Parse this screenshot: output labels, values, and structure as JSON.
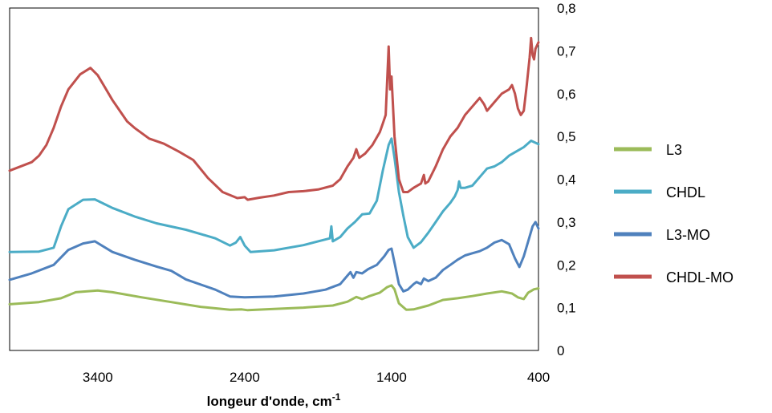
{
  "chart_data": {
    "type": "line",
    "title": "",
    "xlabel": "longeur d'onde, cm",
    "xlabel_superscript": "-1",
    "ylabel": "",
    "x_reversed": true,
    "xlim": [
      4000,
      400
    ],
    "ylim": [
      0,
      0.8
    ],
    "x_ticks": [
      3400,
      2400,
      1400,
      400
    ],
    "x_tick_labels": [
      "3400",
      "2400",
      "1400",
      "400"
    ],
    "y_ticks": [
      0,
      0.1,
      0.2,
      0.3,
      0.4,
      0.5,
      0.6,
      0.7,
      0.8
    ],
    "y_tick_labels": [
      "0",
      "0,1",
      "0,2",
      "0,3",
      "0,4",
      "0,5",
      "0,6",
      "0,7",
      "0,8"
    ],
    "y_axis_side": "right",
    "grid": false,
    "legend_position": "right",
    "series": [
      {
        "name": "L3",
        "color": "#9BBB59",
        "points": [
          [
            4000,
            0.108
          ],
          [
            3800,
            0.113
          ],
          [
            3650,
            0.122
          ],
          [
            3550,
            0.136
          ],
          [
            3400,
            0.14
          ],
          [
            3300,
            0.136
          ],
          [
            3100,
            0.124
          ],
          [
            2900,
            0.113
          ],
          [
            2700,
            0.102
          ],
          [
            2500,
            0.095
          ],
          [
            2420,
            0.096
          ],
          [
            2380,
            0.094
          ],
          [
            2200,
            0.097
          ],
          [
            2000,
            0.1
          ],
          [
            1800,
            0.105
          ],
          [
            1700,
            0.114
          ],
          [
            1640,
            0.125
          ],
          [
            1600,
            0.12
          ],
          [
            1550,
            0.127
          ],
          [
            1480,
            0.135
          ],
          [
            1430,
            0.148
          ],
          [
            1400,
            0.152
          ],
          [
            1380,
            0.143
          ],
          [
            1350,
            0.11
          ],
          [
            1300,
            0.095
          ],
          [
            1250,
            0.096
          ],
          [
            1150,
            0.105
          ],
          [
            1050,
            0.118
          ],
          [
            950,
            0.122
          ],
          [
            850,
            0.127
          ],
          [
            750,
            0.133
          ],
          [
            650,
            0.138
          ],
          [
            580,
            0.133
          ],
          [
            540,
            0.124
          ],
          [
            500,
            0.12
          ],
          [
            470,
            0.135
          ],
          [
            430,
            0.143
          ],
          [
            400,
            0.145
          ]
        ]
      },
      {
        "name": "CHDL",
        "color": "#4BACC6",
        "points": [
          [
            4000,
            0.23
          ],
          [
            3800,
            0.231
          ],
          [
            3700,
            0.24
          ],
          [
            3650,
            0.29
          ],
          [
            3600,
            0.33
          ],
          [
            3500,
            0.352
          ],
          [
            3420,
            0.353
          ],
          [
            3300,
            0.333
          ],
          [
            3150,
            0.313
          ],
          [
            3000,
            0.297
          ],
          [
            2800,
            0.282
          ],
          [
            2700,
            0.272
          ],
          [
            2600,
            0.262
          ],
          [
            2500,
            0.245
          ],
          [
            2460,
            0.252
          ],
          [
            2430,
            0.265
          ],
          [
            2400,
            0.245
          ],
          [
            2360,
            0.23
          ],
          [
            2200,
            0.234
          ],
          [
            2000,
            0.246
          ],
          [
            1900,
            0.255
          ],
          [
            1820,
            0.262
          ],
          [
            1810,
            0.29
          ],
          [
            1800,
            0.255
          ],
          [
            1750,
            0.265
          ],
          [
            1700,
            0.285
          ],
          [
            1650,
            0.3
          ],
          [
            1600,
            0.318
          ],
          [
            1550,
            0.32
          ],
          [
            1500,
            0.35
          ],
          [
            1460,
            0.42
          ],
          [
            1420,
            0.48
          ],
          [
            1400,
            0.495
          ],
          [
            1380,
            0.45
          ],
          [
            1350,
            0.37
          ],
          [
            1320,
            0.315
          ],
          [
            1290,
            0.265
          ],
          [
            1250,
            0.24
          ],
          [
            1200,
            0.253
          ],
          [
            1150,
            0.275
          ],
          [
            1100,
            0.3
          ],
          [
            1050,
            0.325
          ],
          [
            1000,
            0.345
          ],
          [
            970,
            0.36
          ],
          [
            950,
            0.375
          ],
          [
            940,
            0.395
          ],
          [
            930,
            0.38
          ],
          [
            900,
            0.38
          ],
          [
            850,
            0.385
          ],
          [
            800,
            0.405
          ],
          [
            750,
            0.425
          ],
          [
            700,
            0.43
          ],
          [
            650,
            0.44
          ],
          [
            600,
            0.455
          ],
          [
            550,
            0.465
          ],
          [
            500,
            0.475
          ],
          [
            450,
            0.49
          ],
          [
            400,
            0.482
          ]
        ]
      },
      {
        "name": "L3-MO",
        "color": "#4F81BD",
        "points": [
          [
            4000,
            0.165
          ],
          [
            3850,
            0.18
          ],
          [
            3700,
            0.2
          ],
          [
            3600,
            0.235
          ],
          [
            3500,
            0.25
          ],
          [
            3420,
            0.255
          ],
          [
            3300,
            0.23
          ],
          [
            3150,
            0.212
          ],
          [
            3000,
            0.196
          ],
          [
            2900,
            0.186
          ],
          [
            2800,
            0.166
          ],
          [
            2600,
            0.142
          ],
          [
            2500,
            0.126
          ],
          [
            2400,
            0.124
          ],
          [
            2200,
            0.126
          ],
          [
            2000,
            0.133
          ],
          [
            1850,
            0.142
          ],
          [
            1750,
            0.155
          ],
          [
            1700,
            0.175
          ],
          [
            1680,
            0.183
          ],
          [
            1660,
            0.17
          ],
          [
            1640,
            0.183
          ],
          [
            1600,
            0.18
          ],
          [
            1560,
            0.19
          ],
          [
            1500,
            0.2
          ],
          [
            1450,
            0.22
          ],
          [
            1420,
            0.235
          ],
          [
            1400,
            0.238
          ],
          [
            1380,
            0.205
          ],
          [
            1350,
            0.155
          ],
          [
            1320,
            0.138
          ],
          [
            1290,
            0.142
          ],
          [
            1250,
            0.155
          ],
          [
            1230,
            0.16
          ],
          [
            1200,
            0.155
          ],
          [
            1180,
            0.168
          ],
          [
            1150,
            0.162
          ],
          [
            1100,
            0.17
          ],
          [
            1050,
            0.188
          ],
          [
            1000,
            0.2
          ],
          [
            950,
            0.212
          ],
          [
            900,
            0.222
          ],
          [
            850,
            0.227
          ],
          [
            800,
            0.232
          ],
          [
            750,
            0.24
          ],
          [
            700,
            0.252
          ],
          [
            650,
            0.258
          ],
          [
            600,
            0.248
          ],
          [
            560,
            0.215
          ],
          [
            530,
            0.195
          ],
          [
            500,
            0.22
          ],
          [
            470,
            0.255
          ],
          [
            440,
            0.29
          ],
          [
            420,
            0.3
          ],
          [
            400,
            0.285
          ]
        ]
      },
      {
        "name": "CHDL-MO",
        "color": "#C0504D",
        "points": [
          [
            4000,
            0.42
          ],
          [
            3850,
            0.44
          ],
          [
            3800,
            0.455
          ],
          [
            3750,
            0.48
          ],
          [
            3700,
            0.52
          ],
          [
            3650,
            0.57
          ],
          [
            3600,
            0.61
          ],
          [
            3520,
            0.645
          ],
          [
            3450,
            0.66
          ],
          [
            3400,
            0.643
          ],
          [
            3300,
            0.585
          ],
          [
            3200,
            0.535
          ],
          [
            3150,
            0.52
          ],
          [
            3050,
            0.495
          ],
          [
            2950,
            0.483
          ],
          [
            2850,
            0.465
          ],
          [
            2750,
            0.445
          ],
          [
            2650,
            0.403
          ],
          [
            2550,
            0.37
          ],
          [
            2450,
            0.356
          ],
          [
            2400,
            0.358
          ],
          [
            2380,
            0.352
          ],
          [
            2300,
            0.357
          ],
          [
            2200,
            0.362
          ],
          [
            2100,
            0.37
          ],
          [
            2000,
            0.372
          ],
          [
            1900,
            0.376
          ],
          [
            1800,
            0.385
          ],
          [
            1750,
            0.4
          ],
          [
            1700,
            0.43
          ],
          [
            1660,
            0.45
          ],
          [
            1640,
            0.47
          ],
          [
            1620,
            0.45
          ],
          [
            1580,
            0.46
          ],
          [
            1530,
            0.48
          ],
          [
            1480,
            0.51
          ],
          [
            1460,
            0.53
          ],
          [
            1440,
            0.55
          ],
          [
            1420,
            0.71
          ],
          [
            1410,
            0.61
          ],
          [
            1400,
            0.64
          ],
          [
            1380,
            0.5
          ],
          [
            1350,
            0.4
          ],
          [
            1320,
            0.37
          ],
          [
            1290,
            0.37
          ],
          [
            1250,
            0.38
          ],
          [
            1200,
            0.39
          ],
          [
            1180,
            0.41
          ],
          [
            1170,
            0.39
          ],
          [
            1150,
            0.395
          ],
          [
            1100,
            0.43
          ],
          [
            1050,
            0.47
          ],
          [
            1000,
            0.5
          ],
          [
            950,
            0.52
          ],
          [
            900,
            0.55
          ],
          [
            850,
            0.57
          ],
          [
            800,
            0.59
          ],
          [
            770,
            0.575
          ],
          [
            750,
            0.56
          ],
          [
            700,
            0.58
          ],
          [
            650,
            0.6
          ],
          [
            600,
            0.61
          ],
          [
            580,
            0.62
          ],
          [
            560,
            0.6
          ],
          [
            540,
            0.565
          ],
          [
            520,
            0.55
          ],
          [
            500,
            0.56
          ],
          [
            480,
            0.62
          ],
          [
            460,
            0.685
          ],
          [
            450,
            0.73
          ],
          [
            440,
            0.69
          ],
          [
            430,
            0.68
          ],
          [
            420,
            0.705
          ],
          [
            400,
            0.72
          ]
        ]
      }
    ]
  }
}
